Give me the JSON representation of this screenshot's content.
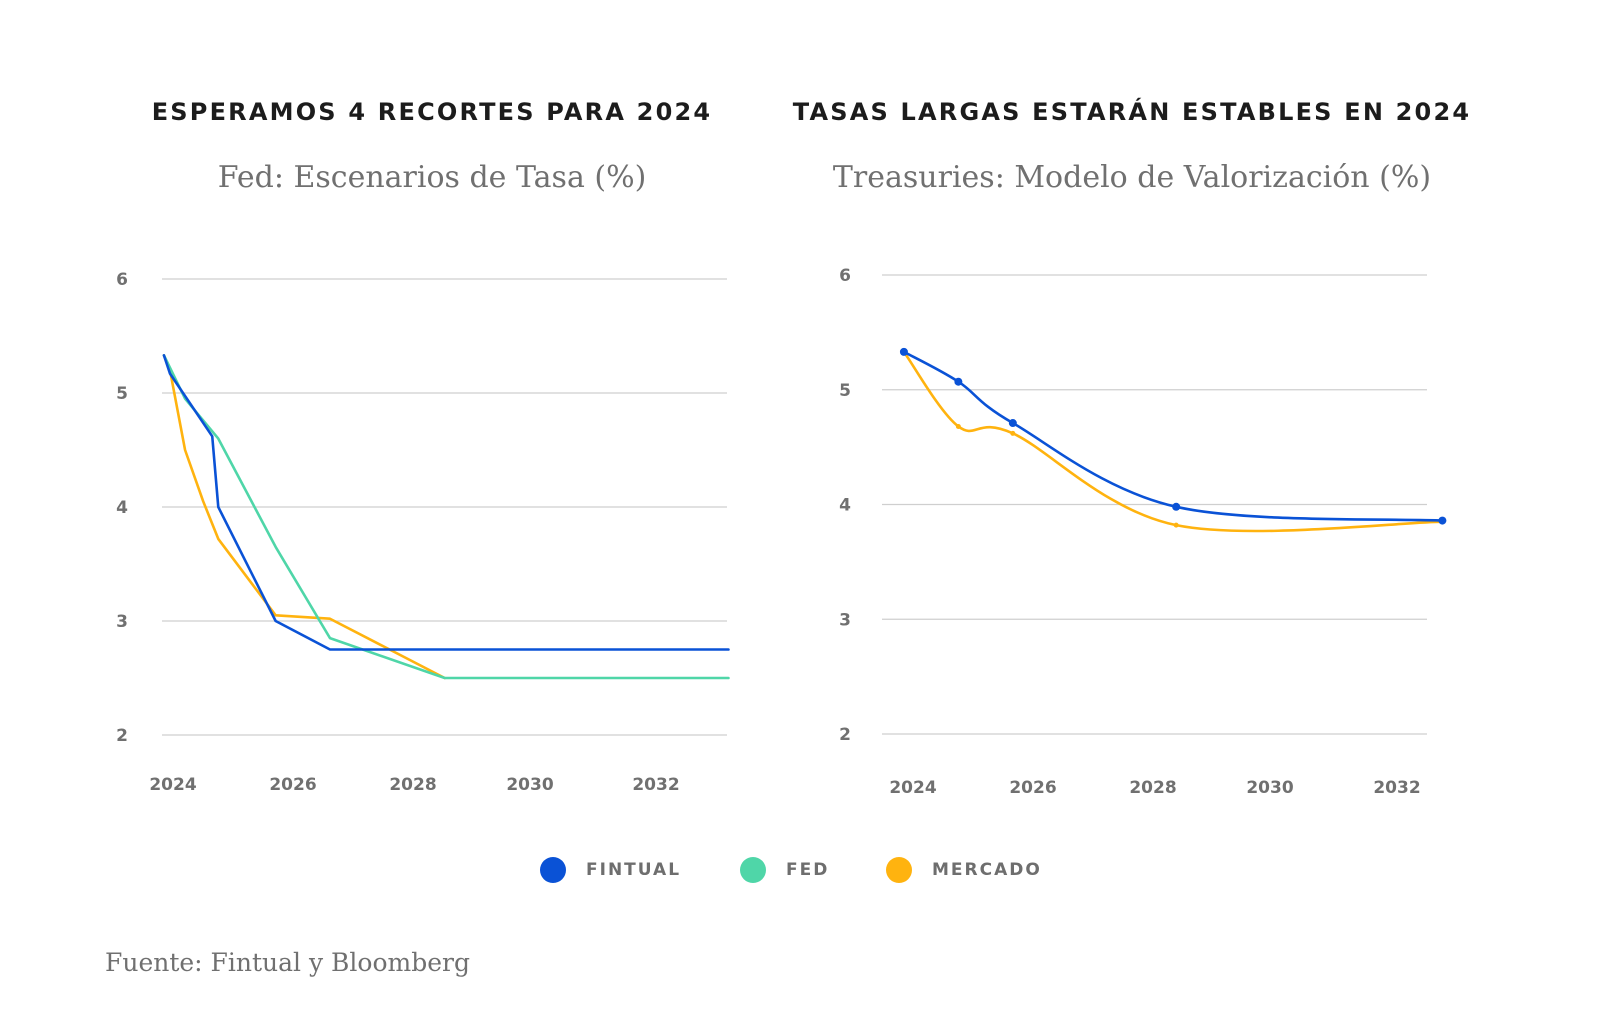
{
  "legend": [
    {
      "label": "FINTUAL",
      "color": "#0a52d6",
      "icon": "circle-dot"
    },
    {
      "label": "FED",
      "color": "#4fd6a8",
      "icon": "circle-dot"
    },
    {
      "label": "MERCADO",
      "color": "#ffb30f",
      "icon": "circle-dot"
    }
  ],
  "source": "Fuente: Fintual y Bloomberg",
  "chart_data": [
    {
      "type": "line",
      "heading": "ESPERAMOS 4 RECORTES PARA 2024",
      "title": "Fed: Escenarios de Tasa (%)",
      "xlabel": "",
      "ylabel": "",
      "x_ticks": [
        "2024",
        "2026",
        "2028",
        "2030",
        "2032"
      ],
      "y_ticks": [
        "2",
        "3",
        "4",
        "5",
        "6"
      ],
      "xlim": [
        2023.8,
        2033.2
      ],
      "ylim": [
        2,
        6
      ],
      "grid": true,
      "legend_position": "bottom",
      "series": [
        {
          "name": "FINTUAL",
          "color": "#0a52d6",
          "markers": false,
          "x": [
            2023.85,
            2023.95,
            2024.65,
            2024.75,
            2025.7,
            2026.6,
            2033.2
          ],
          "y": [
            5.33,
            5.17,
            4.62,
            4.0,
            3.0,
            2.75,
            2.75
          ]
        },
        {
          "name": "FED",
          "color": "#4fd6a8",
          "markers": false,
          "x": [
            2023.85,
            2024.2,
            2024.75,
            2025.7,
            2026.6,
            2028.5,
            2033.2
          ],
          "y": [
            5.33,
            4.95,
            4.6,
            3.65,
            2.85,
            2.5,
            2.5
          ]
        },
        {
          "name": "MERCADO",
          "color": "#ffb30f",
          "markers": false,
          "x": [
            2023.85,
            2023.95,
            2024.2,
            2024.5,
            2024.75,
            2025.7,
            2026.6,
            2028.5
          ],
          "y": [
            5.33,
            5.2,
            4.5,
            4.05,
            3.72,
            3.05,
            3.02,
            2.5
          ]
        }
      ]
    },
    {
      "type": "line",
      "heading": "TASAS LARGAS ESTARÁN ESTABLES EN 2024",
      "title": "Treasuries: Modelo de Valorización (%)",
      "xlabel": "",
      "ylabel": "",
      "x_ticks": [
        "2024",
        "2026",
        "2028",
        "2030",
        "2032"
      ],
      "y_ticks": [
        "2",
        "3",
        "4",
        "5",
        "6"
      ],
      "xlim": [
        2023.8,
        2032.8
      ],
      "ylim": [
        2,
        6
      ],
      "grid": true,
      "legend_position": "bottom",
      "series": [
        {
          "name": "FINTUAL",
          "color": "#0a52d6",
          "markers": true,
          "x": [
            2023.85,
            2024.75,
            2025.65,
            2028.35,
            2032.75
          ],
          "y": [
            5.33,
            5.07,
            4.71,
            3.98,
            3.86
          ]
        },
        {
          "name": "MERCADO",
          "color": "#ffb30f",
          "markers": true,
          "x": [
            2023.85,
            2024.75,
            2025.65,
            2028.35,
            2032.75
          ],
          "y": [
            5.33,
            4.68,
            4.62,
            3.82,
            3.85
          ]
        }
      ]
    }
  ]
}
